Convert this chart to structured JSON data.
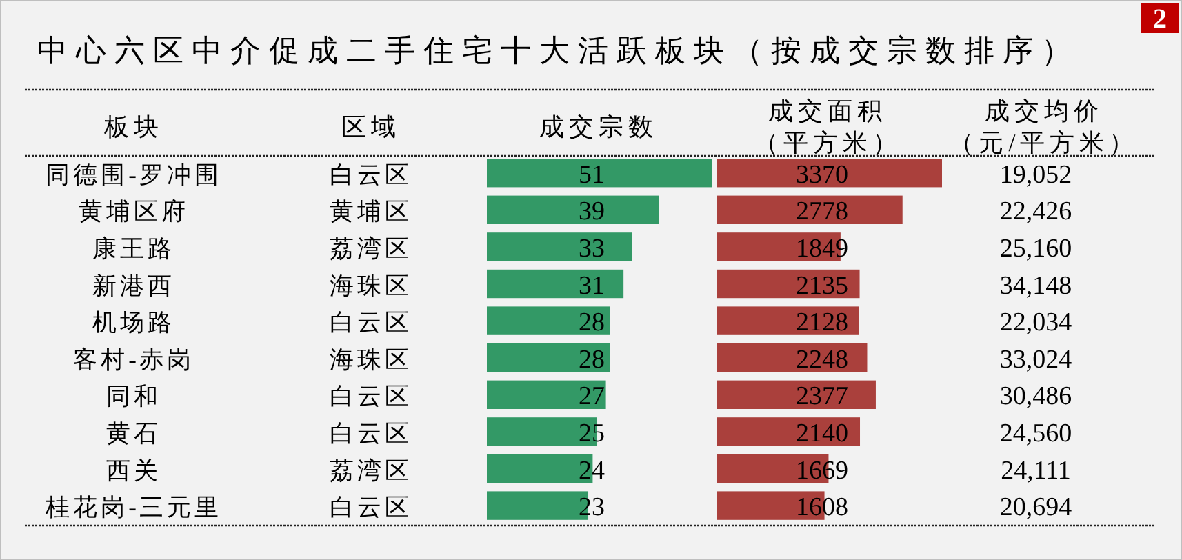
{
  "chart_data": [
    {
      "type": "bar",
      "orientation": "horizontal",
      "title": "中心六区中介促成二手住宅十大活跃板块（按成交宗数排序）",
      "annotations": [
        "2"
      ],
      "ylabel": "板块",
      "y2label": "区域",
      "xlabel": "成交宗数",
      "categories": [
        "同德围-罗冲围",
        "黄埔区府",
        "康王路",
        "新港西",
        "机场路",
        "客村-赤岗",
        "同和",
        "黄石",
        "西关",
        "桂花岗-三元里"
      ],
      "y2_categories": [
        "白云区",
        "黄埔区",
        "荔湾区",
        "海珠区",
        "白云区",
        "海珠区",
        "白云区",
        "白云区",
        "荔湾区",
        "白云区"
      ],
      "values": [
        51,
        39,
        33,
        31,
        28,
        28,
        27,
        25,
        24,
        23
      ],
      "color": "#339966",
      "data_labels": true,
      "tick_labels": "y"
    },
    {
      "type": "bar",
      "orientation": "horizontal",
      "xlabel": "成交面积（平方米）",
      "values": [
        3370,
        2778,
        1849,
        2135,
        2128,
        2248,
        2377,
        2140,
        1669,
        1608
      ],
      "color": "#aa403c",
      "data_labels": true
    },
    {
      "type": "other",
      "xlabel": "成交均价（元/平方米）",
      "values": [
        19052,
        22426,
        25160,
        34148,
        22034,
        33024,
        30486,
        24560,
        24111,
        20694
      ],
      "value_labels": [
        "19,052",
        "22,426",
        "25,160",
        "34,148",
        "22,034",
        "33,024",
        "30,486",
        "24,560",
        "24,111",
        "20,694"
      ]
    }
  ]
}
